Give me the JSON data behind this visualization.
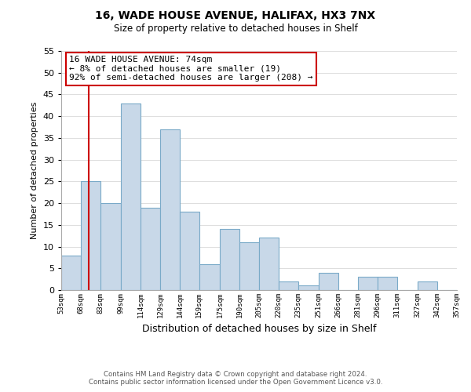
{
  "title_line1": "16, WADE HOUSE AVENUE, HALIFAX, HX3 7NX",
  "title_line2": "Size of property relative to detached houses in Shelf",
  "xlabel": "Distribution of detached houses by size in Shelf",
  "ylabel": "Number of detached properties",
  "bar_edges": [
    53,
    68,
    83,
    99,
    114,
    129,
    144,
    159,
    175,
    190,
    205,
    220,
    235,
    251,
    266,
    281,
    296,
    311,
    327,
    342,
    357
  ],
  "bar_heights": [
    8,
    25,
    20,
    43,
    19,
    37,
    18,
    6,
    14,
    11,
    12,
    2,
    1,
    4,
    0,
    3,
    3,
    0,
    2,
    0
  ],
  "bar_color": "#c8d8e8",
  "bar_edgecolor": "#7aaac8",
  "property_line_x": 74,
  "property_line_color": "#cc0000",
  "ylim": [
    0,
    55
  ],
  "yticks": [
    0,
    5,
    10,
    15,
    20,
    25,
    30,
    35,
    40,
    45,
    50,
    55
  ],
  "tick_labels": [
    "53sqm",
    "68sqm",
    "83sqm",
    "99sqm",
    "114sqm",
    "129sqm",
    "144sqm",
    "159sqm",
    "175sqm",
    "190sqm",
    "205sqm",
    "220sqm",
    "235sqm",
    "251sqm",
    "266sqm",
    "281sqm",
    "296sqm",
    "311sqm",
    "327sqm",
    "342sqm",
    "357sqm"
  ],
  "annotation_title": "16 WADE HOUSE AVENUE: 74sqm",
  "annotation_line1": "← 8% of detached houses are smaller (19)",
  "annotation_line2": "92% of semi-detached houses are larger (208) →",
  "footer_line1": "Contains HM Land Registry data © Crown copyright and database right 2024.",
  "footer_line2": "Contains public sector information licensed under the Open Government Licence v3.0.",
  "background_color": "#ffffff",
  "grid_color": "#dddddd"
}
